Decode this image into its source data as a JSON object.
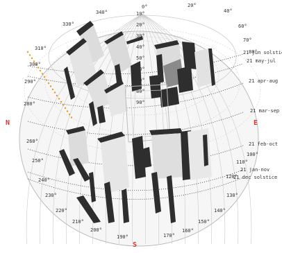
{
  "colors": {
    "background": "#ffffff",
    "grid": "#c9c9c9",
    "dome_shade": "#f2f2f2",
    "building_dark": "#2e2e2e",
    "building_mid": "#8a8a8a",
    "building_light": "#dcdcdc",
    "cardinal": "#e0302a",
    "sun_path": "#e39a2c",
    "label": "#333333"
  },
  "cardinals": {
    "north": "N",
    "east": "E",
    "south": "S"
  },
  "azimuth_labels": [
    "0°",
    "20°",
    "40°",
    "60°",
    "70°",
    "80°",
    "100°",
    "110°",
    "120°",
    "130°",
    "140°",
    "150°",
    "160°",
    "170°",
    "190°",
    "200°",
    "210°",
    "220°",
    "230°",
    "240°",
    "250°",
    "260°",
    "280°",
    "290°",
    "300°",
    "310°",
    "330°",
    "340°"
  ],
  "altitude_labels": [
    "10°",
    "20°",
    "30°",
    "40°",
    "50°",
    "60°",
    "70°",
    "80°",
    "90°"
  ],
  "sun_paths": [
    "21 jun  solstice",
    "21 may-jul",
    "21 apr-aug",
    "21 mar-sep",
    "21 feb-oct",
    "21 jan-nov",
    "21 dec  solstice"
  ]
}
